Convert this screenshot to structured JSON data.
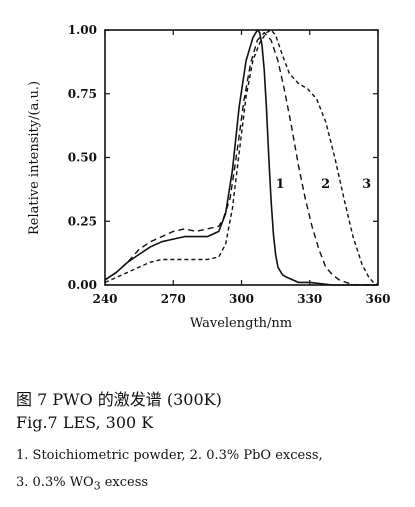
{
  "chart_data": {
    "type": "line",
    "xlabel": "Wavelength/nm",
    "ylabel": "Relative intensity/(a.u.)",
    "xlim": [
      240,
      360
    ],
    "ylim": [
      0,
      1.0
    ],
    "x_ticks": [
      "240",
      "270",
      "300",
      "330",
      "360"
    ],
    "y_ticks": [
      "0.00",
      "0.25",
      "0.50",
      "0.75",
      "1.00"
    ],
    "series": [
      {
        "name": "1",
        "line_style": "solid",
        "x": [
          240,
          245,
          250,
          255,
          260,
          265,
          270,
          275,
          280,
          285,
          290,
          293,
          296,
          299,
          302,
          305,
          307,
          308,
          309,
          310,
          311,
          312,
          313,
          314,
          315,
          316,
          318,
          320,
          325,
          330,
          340,
          350,
          360
        ],
        "y": [
          0.02,
          0.05,
          0.09,
          0.12,
          0.15,
          0.17,
          0.18,
          0.19,
          0.19,
          0.19,
          0.21,
          0.28,
          0.45,
          0.7,
          0.88,
          0.97,
          1.0,
          0.99,
          0.94,
          0.84,
          0.69,
          0.5,
          0.33,
          0.2,
          0.12,
          0.07,
          0.04,
          0.03,
          0.01,
          0.01,
          0.0,
          0.0,
          0.0
        ]
      },
      {
        "name": "2",
        "line_style": "dashed",
        "x": [
          240,
          245,
          250,
          255,
          260,
          265,
          270,
          275,
          280,
          285,
          290,
          292,
          295,
          298,
          301,
          304,
          307,
          310,
          313,
          316,
          319,
          322,
          325,
          328,
          331,
          334,
          337,
          340,
          343,
          346,
          350,
          355,
          360
        ],
        "y": [
          0.02,
          0.05,
          0.09,
          0.14,
          0.17,
          0.19,
          0.21,
          0.22,
          0.21,
          0.22,
          0.23,
          0.26,
          0.34,
          0.52,
          0.72,
          0.87,
          0.96,
          0.99,
          0.96,
          0.88,
          0.76,
          0.62,
          0.47,
          0.34,
          0.23,
          0.14,
          0.07,
          0.04,
          0.02,
          0.01,
          0.0,
          0.0,
          0.0
        ]
      },
      {
        "name": "3",
        "line_style": "dashed",
        "x": [
          240,
          245,
          250,
          255,
          260,
          265,
          270,
          275,
          280,
          285,
          290,
          293,
          296,
          299,
          302,
          305,
          308,
          311,
          313,
          315,
          318,
          321,
          325,
          329,
          333,
          337,
          341,
          345,
          349,
          353,
          356,
          358,
          360
        ],
        "y": [
          0.01,
          0.03,
          0.05,
          0.07,
          0.09,
          0.1,
          0.1,
          0.1,
          0.1,
          0.1,
          0.11,
          0.16,
          0.3,
          0.52,
          0.74,
          0.88,
          0.95,
          0.99,
          1.0,
          0.98,
          0.9,
          0.83,
          0.79,
          0.77,
          0.73,
          0.64,
          0.5,
          0.34,
          0.19,
          0.08,
          0.03,
          0.01,
          0.0
        ]
      }
    ],
    "curve_labels": [
      "1",
      "2",
      "3"
    ],
    "grid": false
  },
  "caption": {
    "line1": "图 7 PWO 的激发谱 (300K)",
    "line2": "Fig.7 LES, 300 K",
    "line3": "1. Stoichiometric powder, 2. 0.3% PbO excess,",
    "line4_prefix": "3. 0.3% WO",
    "line4_sub": "3",
    "line4_suffix": " excess"
  }
}
